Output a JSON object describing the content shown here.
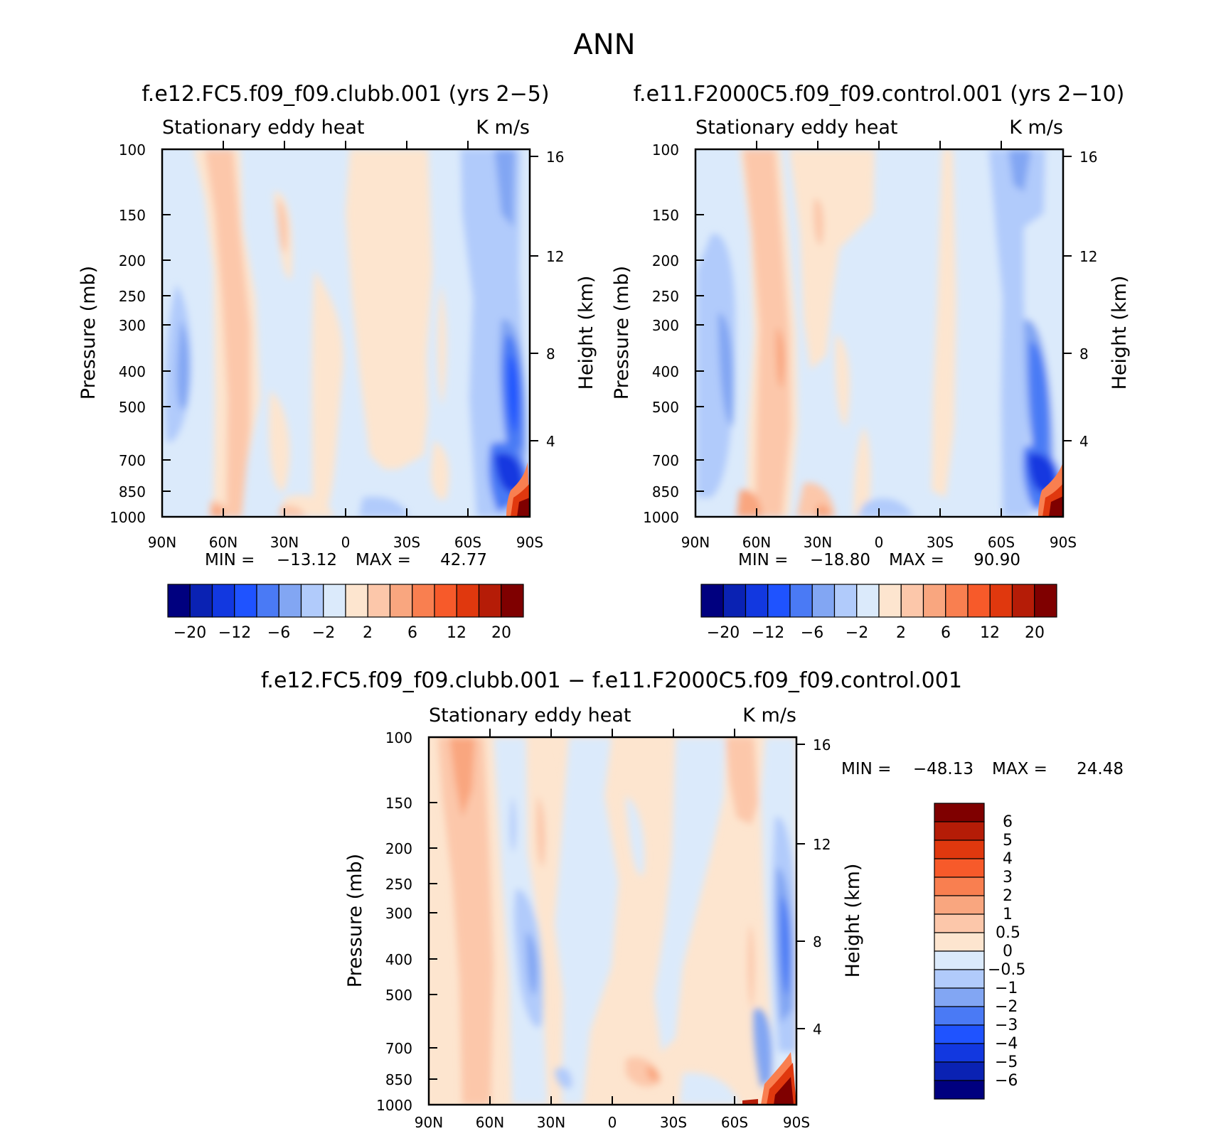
{
  "figure": {
    "title": "ANN",
    "units": "K m/s"
  },
  "colors": {
    "main_scale": [
      "#00007f",
      "#0a22b3",
      "#1238e0",
      "#1f53ff",
      "#4a7af5",
      "#82a6f3",
      "#b1cbfb",
      "#dbeafb",
      "#fde5cf",
      "#fcc7aa",
      "#f9a67f",
      "#f97f50",
      "#f75a2a",
      "#e0380e",
      "#b51c07",
      "#7f0000"
    ],
    "diff_scale": [
      "#00007f",
      "#0a22b3",
      "#1238e0",
      "#1f53ff",
      "#4a7af5",
      "#82a6f3",
      "#b1cbfb",
      "#dbeafb",
      "#fde5cf",
      "#fcc7aa",
      "#f9a67f",
      "#f97f50",
      "#f75a2a",
      "#e0380e",
      "#b51c07",
      "#7f0000"
    ]
  },
  "chart_data": [
    {
      "type": "heatmap",
      "title": "f.e12.FC5.f09_f09.clubb.001 (yrs 2−5)",
      "subtitle": "Stationary eddy heat",
      "units": "K m/s",
      "ylabel": "Pressure (mb)",
      "ylabel_right": "Height (km)",
      "x_ticks": [
        "90N",
        "60N",
        "30N",
        "0",
        "30S",
        "60S",
        "90S"
      ],
      "y_ticks": [
        "100",
        "150",
        "200",
        "250",
        "300",
        "400",
        "500",
        "700",
        "850",
        "1000"
      ],
      "y_ticks_right": [
        "16",
        "12",
        "8",
        "4"
      ],
      "min_label": "MIN =",
      "min_value": "−13.12",
      "max_label": "MAX =",
      "max_value": "42.77",
      "colorbar_labels": [
        "−20",
        "−12",
        "−6",
        "−2",
        "2",
        "6",
        "12",
        "20"
      ]
    },
    {
      "type": "heatmap",
      "title": "f.e11.F2000C5.f09_f09.control.001 (yrs 2−10)",
      "subtitle": "Stationary eddy heat",
      "units": "K m/s",
      "ylabel": "Pressure (mb)",
      "ylabel_right": "Height (km)",
      "x_ticks": [
        "90N",
        "60N",
        "30N",
        "0",
        "30S",
        "60S",
        "90S"
      ],
      "y_ticks": [
        "100",
        "150",
        "200",
        "250",
        "300",
        "400",
        "500",
        "700",
        "850",
        "1000"
      ],
      "y_ticks_right": [
        "16",
        "12",
        "8",
        "4"
      ],
      "min_label": "MIN =",
      "min_value": "−18.80",
      "max_label": "MAX =",
      "max_value": "90.90",
      "colorbar_labels": [
        "−20",
        "−12",
        "−6",
        "−2",
        "2",
        "6",
        "12",
        "20"
      ]
    },
    {
      "type": "heatmap",
      "title": "f.e12.FC5.f09_f09.clubb.001 − f.e11.F2000C5.f09_f09.control.001",
      "subtitle": "Stationary eddy heat",
      "units": "K m/s",
      "ylabel": "Pressure (mb)",
      "ylabel_right": "Height (km)",
      "x_ticks": [
        "90N",
        "60N",
        "30N",
        "0",
        "30S",
        "60S",
        "90S"
      ],
      "y_ticks": [
        "100",
        "150",
        "200",
        "250",
        "300",
        "400",
        "500",
        "700",
        "850",
        "1000"
      ],
      "y_ticks_right": [
        "16",
        "12",
        "8",
        "4"
      ],
      "min_label": "MIN =",
      "min_value": "−48.13",
      "max_label": "MAX =",
      "max_value": "24.48",
      "colorbar_labels": [
        "6",
        "5",
        "4",
        "3",
        "2",
        "1",
        "0.5",
        "0",
        "−0.5",
        "−1",
        "−2",
        "−3",
        "−4",
        "−5",
        "−6"
      ]
    }
  ]
}
